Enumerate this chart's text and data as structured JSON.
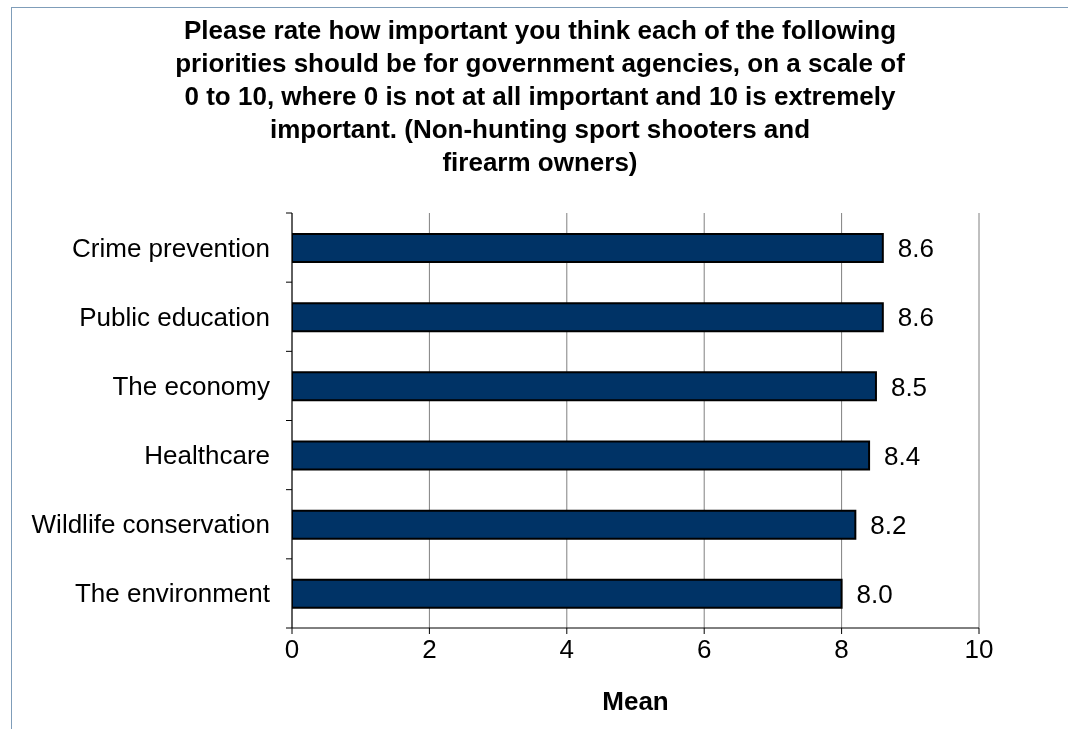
{
  "chart_data": {
    "type": "bar",
    "orientation": "horizontal",
    "title": "Please rate how important you think each of the following\npriorities should be for government agencies, on a scale of\n0 to 10, where 0 is not at all important and 10 is extremely\nimportant. (Non-hunting sport shooters and\nfirearm owners)",
    "xlabel": "Mean",
    "categories": [
      "Crime prevention",
      "Public education",
      "The economy",
      "Healthcare",
      "Wildlife conservation",
      "The environment"
    ],
    "values": [
      8.6,
      8.6,
      8.5,
      8.4,
      8.2,
      8.0
    ],
    "value_labels": [
      "8.6",
      "8.6",
      "8.5",
      "8.4",
      "8.2",
      "8.0"
    ],
    "color": "#003366",
    "xlim": [
      0,
      10
    ],
    "xticks": [
      0,
      2,
      4,
      6,
      8,
      10
    ],
    "grid": "x"
  }
}
